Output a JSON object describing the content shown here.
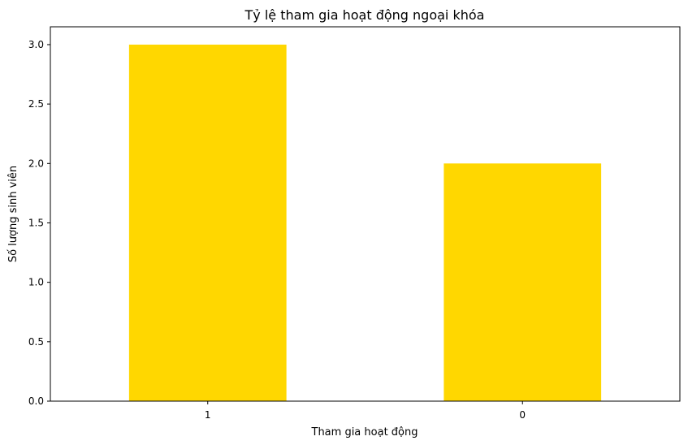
{
  "chart_data": {
    "type": "bar",
    "title": "Tỷ lệ tham gia hoạt động ngoại khóa",
    "xlabel": "Tham gia hoạt động",
    "ylabel": "Số lượng sinh viên",
    "categories": [
      "1",
      "0"
    ],
    "values": [
      3,
      2
    ],
    "ylim": [
      0,
      3.15
    ],
    "yticks": [
      "0.0",
      "0.5",
      "1.0",
      "1.5",
      "2.0",
      "2.5",
      "3.0"
    ],
    "bar_color": "#FFD700",
    "grid": false,
    "legend": "none"
  }
}
